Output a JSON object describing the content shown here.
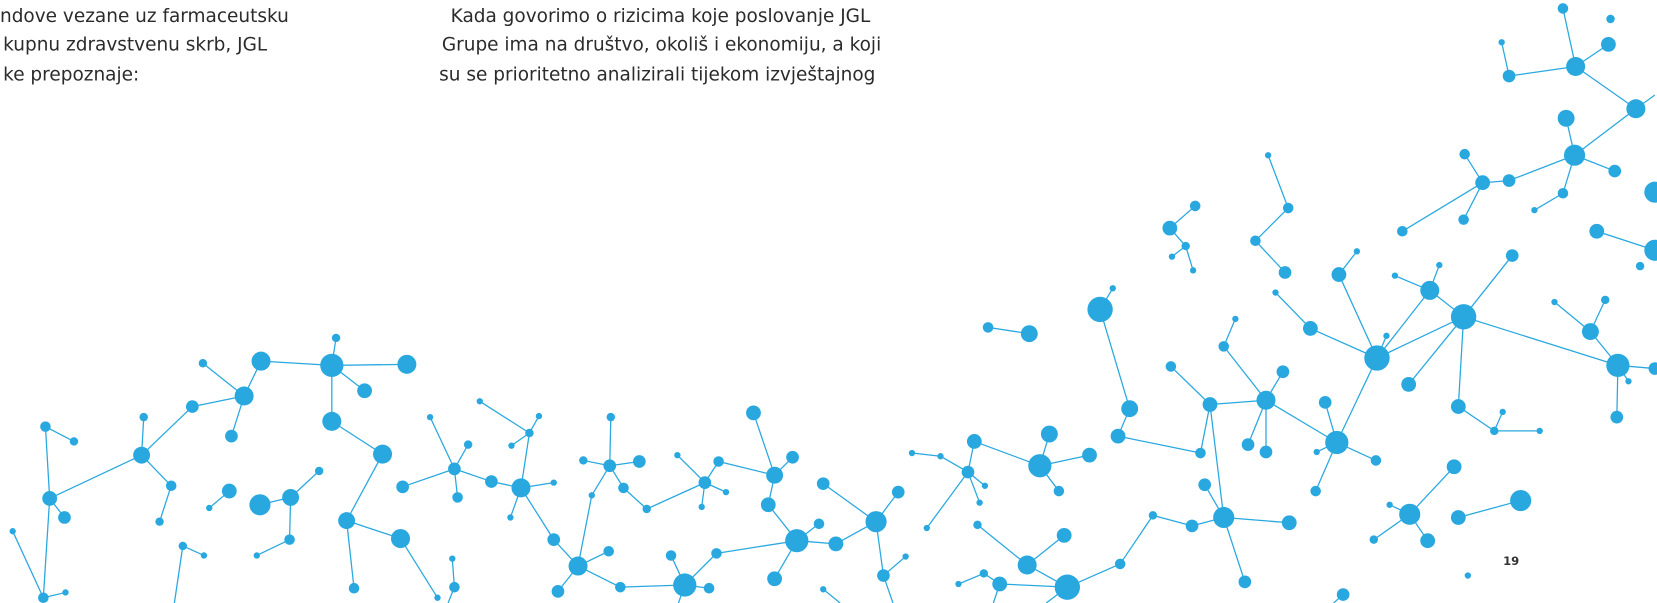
{
  "columns": [
    {
      "lines": [
        "ndove vezane uz farmaceutsku",
        "kupnu zdravstvenu skrb, JGL",
        "ke prepoznaje:"
      ]
    },
    {
      "lines": [
        "Kada govorimo o rizicima koje poslovanje JGL",
        "Grupe ima na društvo, okoliš i ekonomiju, a koji",
        "su se prioritetno analizirali tijekom izvještajnog"
      ]
    }
  ],
  "page_number": "19"
}
